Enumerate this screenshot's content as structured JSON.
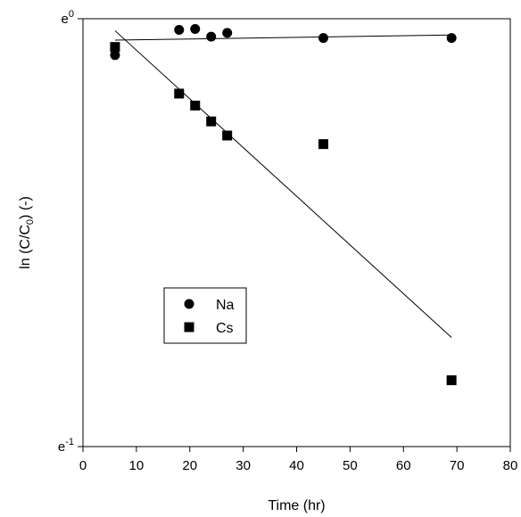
{
  "chart_data": {
    "type": "scatter",
    "xlabel": "Time  (hr)",
    "ylabel": {
      "prefix": "ln (C/C",
      "sub": "0",
      "suffix": ") (-)"
    },
    "xlim": [
      0,
      80
    ],
    "ylim": [
      -1,
      0
    ],
    "yscale": "natural-log (exponential tick labels)",
    "xticks": [
      "0",
      "10",
      "20",
      "30",
      "40",
      "50",
      "60",
      "70",
      "80"
    ],
    "yticks": [
      {
        "value": 0,
        "base": "e",
        "exp": "0"
      },
      {
        "value": -1,
        "base": "e",
        "exp": "-1"
      }
    ],
    "grid": false,
    "legend": {
      "placement": "lower-left"
    },
    "series": [
      {
        "name": "Na",
        "marker": "circle",
        "points": [
          {
            "x": 6,
            "y": -0.085
          },
          {
            "x": 18,
            "y": -0.026
          },
          {
            "x": 21,
            "y": -0.024
          },
          {
            "x": 24,
            "y": -0.042
          },
          {
            "x": 27,
            "y": -0.033
          },
          {
            "x": 45,
            "y": -0.045
          },
          {
            "x": 69,
            "y": -0.045
          }
        ],
        "fit": {
          "x": [
            6,
            69
          ],
          "y": [
            -0.05,
            -0.038
          ]
        }
      },
      {
        "name": "Cs",
        "marker": "square",
        "points": [
          {
            "x": 6,
            "y": -0.066
          },
          {
            "x": 18,
            "y": -0.175
          },
          {
            "x": 21,
            "y": -0.203
          },
          {
            "x": 24,
            "y": -0.24
          },
          {
            "x": 27,
            "y": -0.273
          },
          {
            "x": 45,
            "y": -0.293
          },
          {
            "x": 69,
            "y": -0.845
          }
        ],
        "fit": {
          "x": [
            6,
            69
          ],
          "y": [
            -0.028,
            -0.745
          ]
        }
      }
    ]
  }
}
